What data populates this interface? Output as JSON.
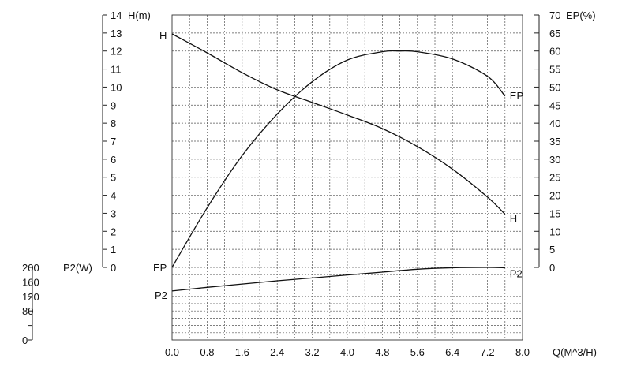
{
  "chart_data": {
    "type": "line",
    "x_axis": {
      "label": "Q(M^3/H)",
      "range": [
        0,
        8
      ],
      "ticks": [
        "0.0",
        "0.8",
        "1.6",
        "2.4",
        "3.2",
        "4.0",
        "4.8",
        "5.6",
        "6.4",
        "7.2",
        "8.0"
      ]
    },
    "y_axes": [
      {
        "id": "H",
        "label": "H(m)",
        "side": "left",
        "range": [
          0,
          14
        ],
        "ticks": [
          "0",
          "1",
          "2",
          "3",
          "4",
          "5",
          "6",
          "7",
          "8",
          "9",
          "10",
          "11",
          "12",
          "13",
          "14"
        ]
      },
      {
        "id": "EP",
        "label": "EP(%)",
        "side": "right",
        "range": [
          0,
          70
        ],
        "ticks": [
          "0",
          "5",
          "10",
          "15",
          "20",
          "25",
          "30",
          "35",
          "40",
          "45",
          "50",
          "55",
          "60",
          "65",
          "70"
        ]
      },
      {
        "id": "P2",
        "label": "P2(W)",
        "side": "left-lower",
        "range": [
          0,
          200
        ],
        "ticks": [
          "0",
          "40",
          "80",
          "120",
          "160",
          "200"
        ],
        "tick_labels_shown": [
          "0",
          "80",
          "120",
          "160",
          "200"
        ]
      }
    ],
    "series": [
      {
        "name": "H",
        "axis": "H",
        "start_label": "H",
        "end_label": "H",
        "x": [
          0,
          0.8,
          1.6,
          2.4,
          3.2,
          4.0,
          4.8,
          5.6,
          6.4,
          7.2,
          7.6
        ],
        "y": [
          12.95,
          11.9,
          10.8,
          9.85,
          9.15,
          8.45,
          7.7,
          6.7,
          5.45,
          3.9,
          2.95
        ]
      },
      {
        "name": "EP",
        "axis": "EP",
        "start_label": "EP",
        "end_label": "EP",
        "x": [
          0,
          0.8,
          1.6,
          2.4,
          3.2,
          4.0,
          4.8,
          5.2,
          5.6,
          6.4,
          7.2,
          7.6
        ],
        "y": [
          0,
          16.5,
          31,
          42.5,
          51.5,
          57.5,
          59.8,
          60,
          59.8,
          57.8,
          53,
          47.5
        ]
      },
      {
        "name": "P2",
        "axis": "P2",
        "start_label": "P2",
        "end_label": "P2",
        "x": [
          0,
          0.8,
          1.6,
          2.4,
          3.2,
          4.0,
          4.8,
          5.6,
          6.4,
          7.2,
          7.6
        ],
        "y": [
          135,
          145,
          154,
          163,
          171,
          179,
          187,
          195,
          199,
          200,
          199
        ]
      }
    ],
    "grid": true,
    "grid_style": "dashed"
  }
}
